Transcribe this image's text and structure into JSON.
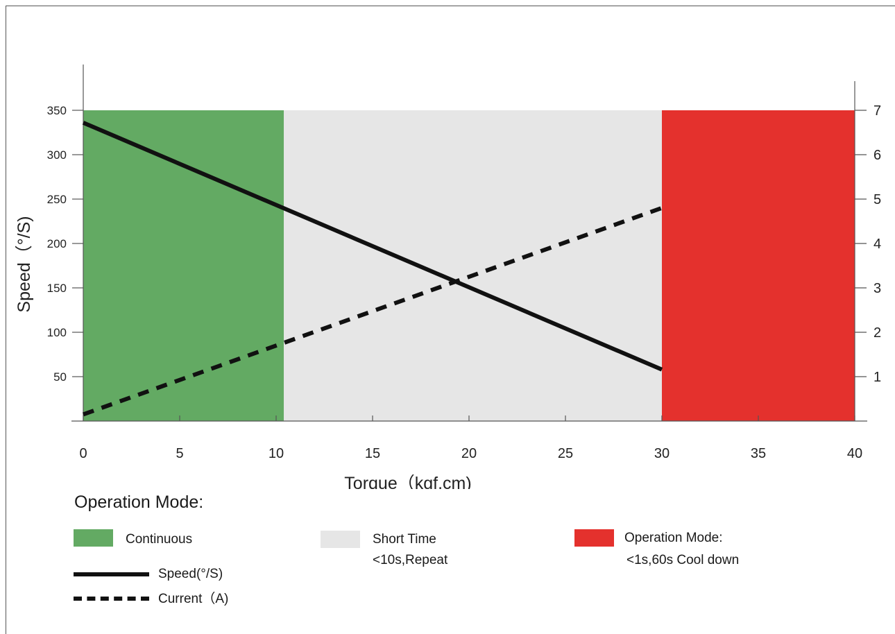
{
  "chart_data": {
    "type": "line",
    "xlabel": "Torque（kgf.cm)",
    "ylabel": "Speed（°/S)",
    "xlim": [
      0,
      40
    ],
    "ylim": [
      0,
      350
    ],
    "y2lim": [
      0,
      7
    ],
    "x_ticks": [
      "0",
      "5",
      "10",
      "15",
      "20",
      "25",
      "30",
      "35",
      "40"
    ],
    "y_ticks": [
      "50",
      "100",
      "150",
      "200",
      "250",
      "300",
      "350"
    ],
    "y2_ticks": [
      "1",
      "2",
      "3",
      "4",
      "5",
      "6",
      "7"
    ],
    "regions": [
      {
        "name": "Continuous",
        "from": 0,
        "to": 10.4,
        "color": "#63aa63"
      },
      {
        "name": "Short Time",
        "from": 10.4,
        "to": 30,
        "color": "#e6e6e6"
      },
      {
        "name": "Operation Mode:",
        "from": 30,
        "to": 40,
        "color": "#e4312d"
      }
    ],
    "series": [
      {
        "name": "Speed(°/S)",
        "axis": "left",
        "style": "solid",
        "color": "#111111",
        "x": [
          0,
          30
        ],
        "y": [
          336,
          58
        ]
      },
      {
        "name": "Current（A)",
        "axis": "right",
        "style": "dashed",
        "color": "#111111",
        "x": [
          0,
          30
        ],
        "y": [
          0.15,
          4.8
        ]
      }
    ],
    "legend": {
      "title": "Operation Mode:",
      "continuous": "Continuous",
      "short_time": [
        "Short Time",
        "<10s,Repeat"
      ],
      "operation_mode": [
        "Operation Mode:",
        "<1s,60s Cool down"
      ],
      "speed": "Speed(°/S)",
      "current": "Current（A)"
    }
  }
}
